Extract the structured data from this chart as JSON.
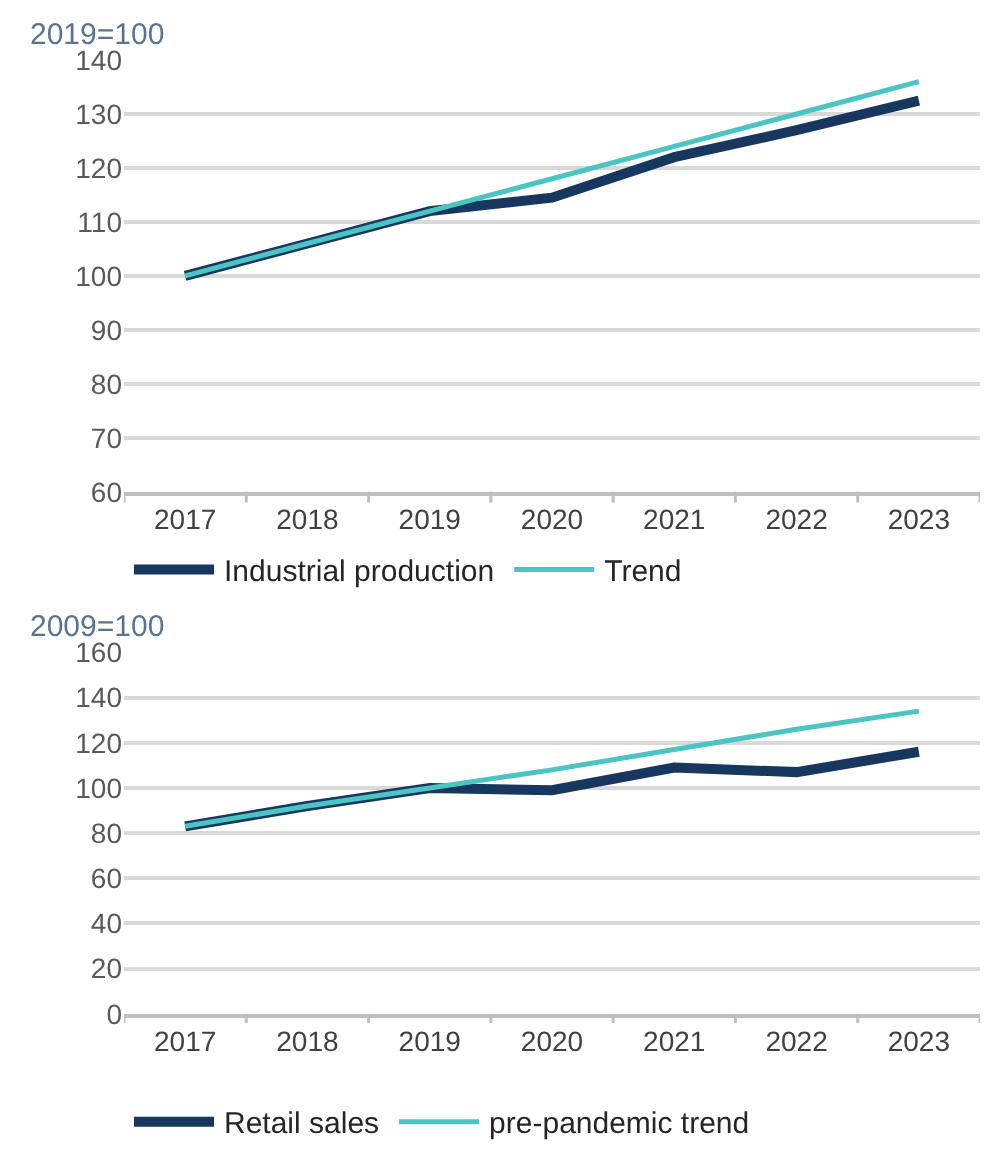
{
  "chart_data": [
    {
      "type": "line",
      "ylabel": "2019=100",
      "categories": [
        "2017",
        "2018",
        "2019",
        "2020",
        "2021",
        "2022",
        "2023"
      ],
      "series": [
        {
          "name": "Industrial production",
          "color": "#17375e",
          "values": [
            100,
            106,
            112,
            114.5,
            122,
            127,
            132.5
          ]
        },
        {
          "name": "Trend",
          "color": "#4bc4c4",
          "values": [
            100,
            106,
            112,
            118,
            124,
            130,
            136
          ]
        }
      ],
      "ylim": [
        60,
        140
      ],
      "yticks": [
        60,
        70,
        80,
        90,
        100,
        110,
        120,
        130,
        140
      ],
      "grid": "y",
      "legend": "bottom"
    },
    {
      "type": "line",
      "ylabel": "2009=100",
      "categories": [
        "2017",
        "2018",
        "2019",
        "2020",
        "2021",
        "2022",
        "2023"
      ],
      "series": [
        {
          "name": "Retail sales",
          "color": "#17375e",
          "values": [
            83,
            92,
            100,
            99,
            109,
            107,
            116
          ]
        },
        {
          "name": "pre-pandemic trend",
          "color": "#4bc4c4",
          "values": [
            83,
            92,
            100,
            108,
            117,
            126,
            134
          ]
        }
      ],
      "ylim": [
        0,
        160
      ],
      "yticks": [
        0,
        20,
        40,
        60,
        80,
        100,
        120,
        140,
        160
      ],
      "grid": "y",
      "legend": "bottom"
    }
  ]
}
